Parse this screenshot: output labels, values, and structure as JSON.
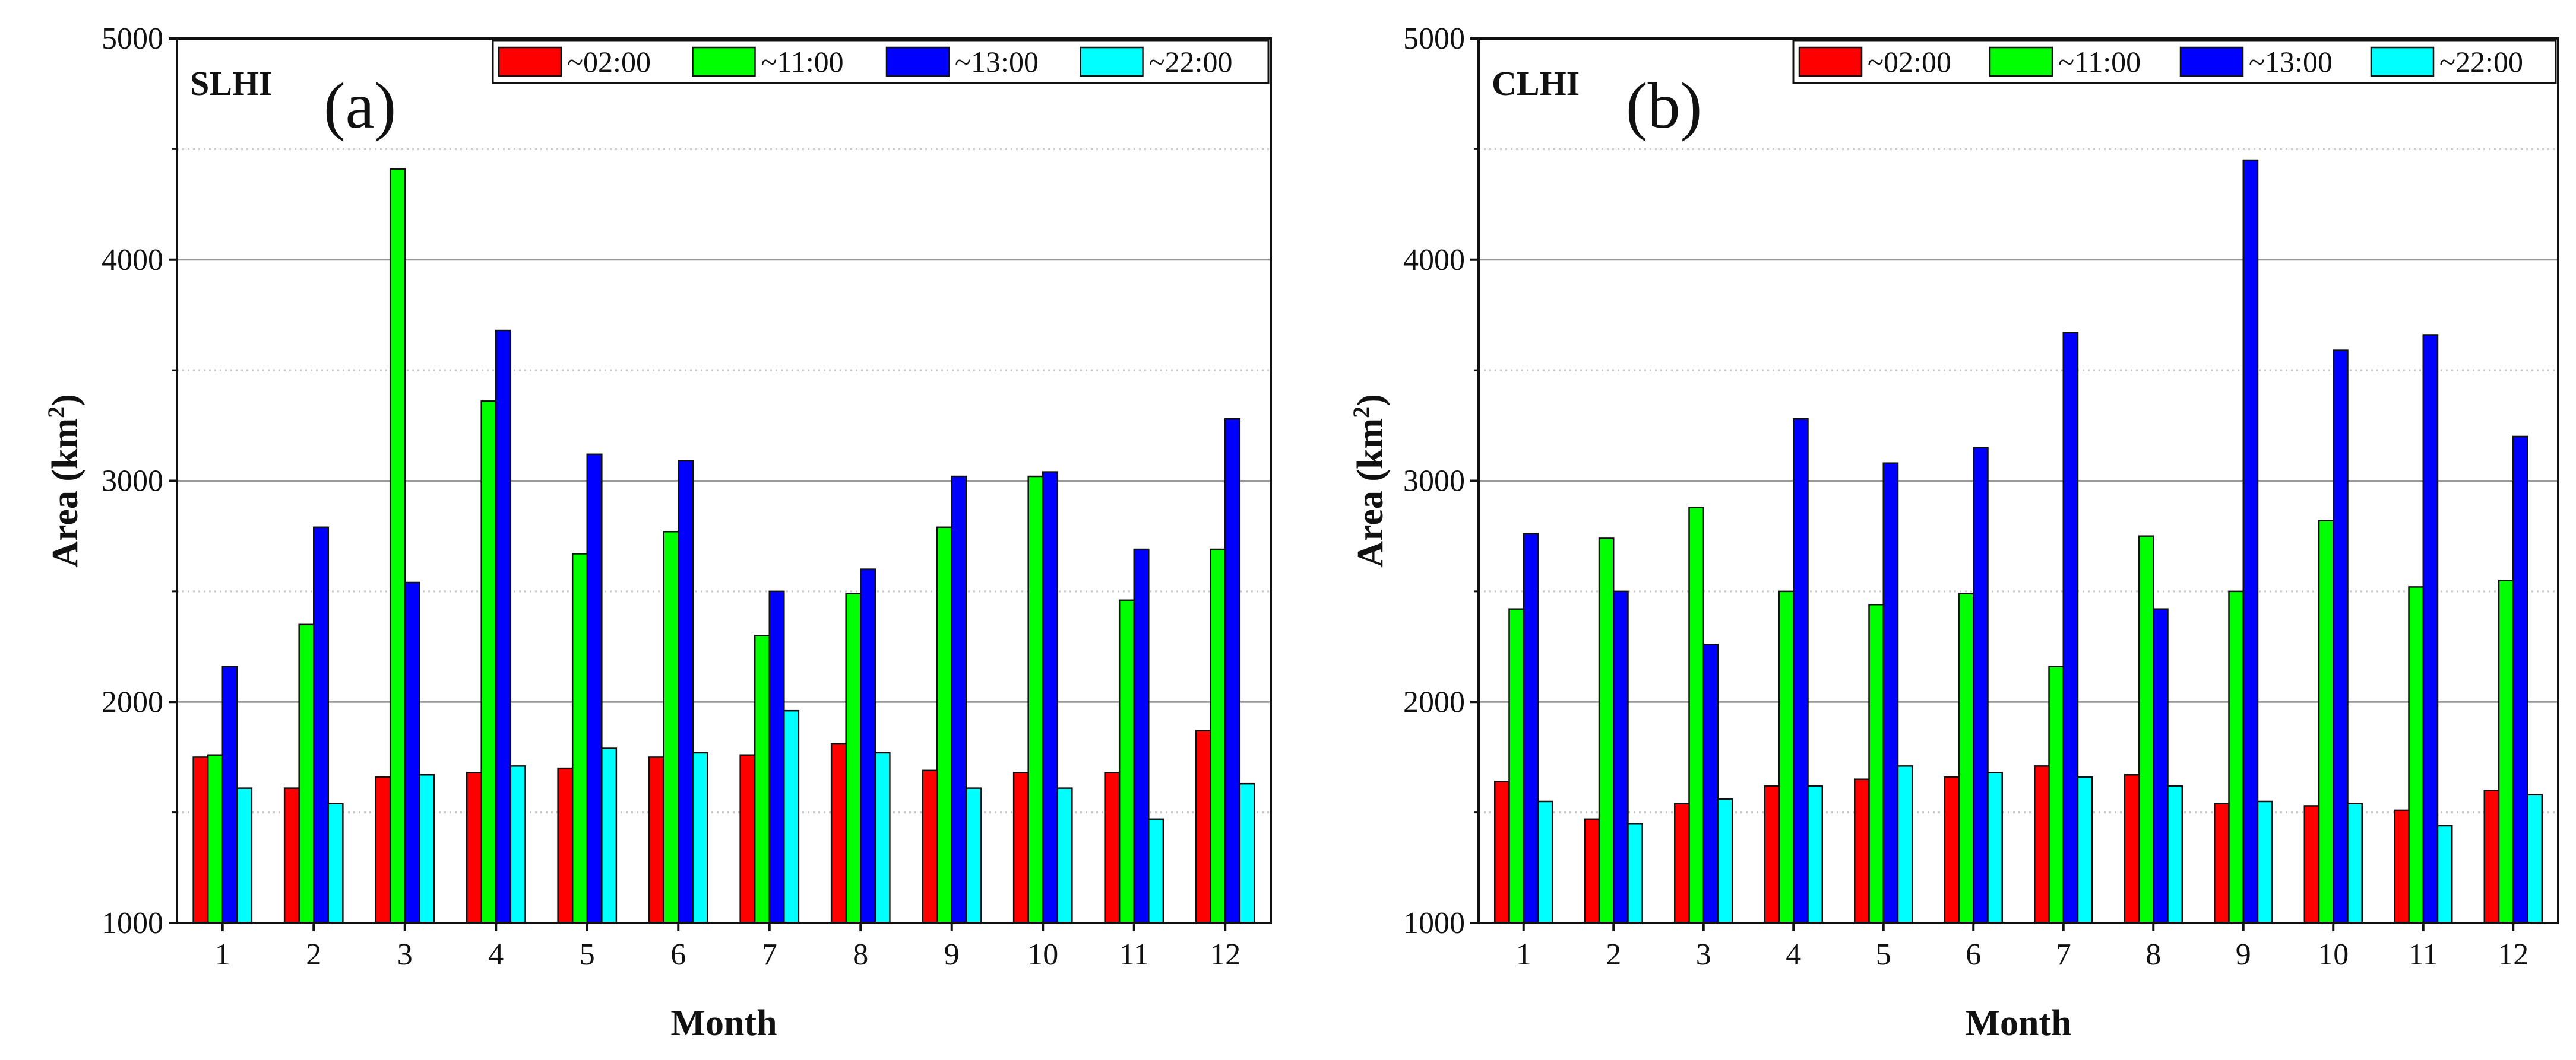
{
  "chart_data": [
    {
      "type": "bar",
      "panel_label": "(a)",
      "tag": "SLHI",
      "xlabel": "Month",
      "ylabel_text": "Area (km",
      "ylabel_sup": "2",
      "ylabel_close": ")",
      "ylim": [
        1000,
        5000
      ],
      "yticks": [
        1000,
        2000,
        3000,
        4000,
        5000
      ],
      "grid": "horizontal",
      "legend_position": "top",
      "categories": [
        "1",
        "2",
        "3",
        "4",
        "5",
        "6",
        "7",
        "8",
        "9",
        "10",
        "11",
        "12"
      ],
      "series": [
        {
          "name": "~02:00",
          "color": "#ff0000",
          "values": [
            1750,
            1610,
            1660,
            1680,
            1700,
            1750,
            1760,
            1810,
            1690,
            1680,
            1680,
            1870
          ]
        },
        {
          "name": "~11:00",
          "color": "#00ff00",
          "values": [
            1760,
            2350,
            4410,
            3360,
            2670,
            2770,
            2300,
            2490,
            2790,
            3020,
            2460,
            2690
          ]
        },
        {
          "name": "~13:00",
          "color": "#0000ff",
          "values": [
            2160,
            2790,
            2540,
            3680,
            3120,
            3090,
            2500,
            2600,
            3020,
            3040,
            2690,
            3280
          ]
        },
        {
          "name": "~22:00",
          "color": "#00ffff",
          "values": [
            1610,
            1540,
            1670,
            1710,
            1790,
            1770,
            1960,
            1770,
            1610,
            1610,
            1470,
            1630
          ]
        }
      ]
    },
    {
      "type": "bar",
      "panel_label": "(b)",
      "tag": "CLHI",
      "xlabel": "Month",
      "ylabel_text": "Area (km",
      "ylabel_sup": "2",
      "ylabel_close": ")",
      "ylim": [
        1000,
        5000
      ],
      "yticks": [
        1000,
        2000,
        3000,
        4000,
        5000
      ],
      "grid": "horizontal",
      "legend_position": "top",
      "categories": [
        "1",
        "2",
        "3",
        "4",
        "5",
        "6",
        "7",
        "8",
        "9",
        "10",
        "11",
        "12"
      ],
      "series": [
        {
          "name": "~02:00",
          "color": "#ff0000",
          "values": [
            1640,
            1470,
            1540,
            1620,
            1650,
            1660,
            1710,
            1670,
            1540,
            1530,
            1510,
            1600
          ]
        },
        {
          "name": "~11:00",
          "color": "#00ff00",
          "values": [
            2420,
            2740,
            2880,
            2500,
            2440,
            2490,
            2160,
            2750,
            2500,
            2820,
            2520,
            2550
          ]
        },
        {
          "name": "~13:00",
          "color": "#0000ff",
          "values": [
            2760,
            2500,
            2260,
            3280,
            3080,
            3150,
            3670,
            2420,
            4450,
            3590,
            3660,
            3200
          ]
        },
        {
          "name": "~22:00",
          "color": "#00ffff",
          "values": [
            1550,
            1450,
            1560,
            1620,
            1710,
            1680,
            1660,
            1620,
            1550,
            1540,
            1440,
            1580
          ]
        }
      ]
    }
  ]
}
